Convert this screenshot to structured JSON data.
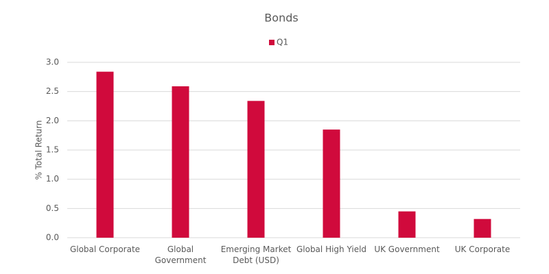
{
  "chart_data": {
    "type": "bar",
    "title": "Bonds",
    "y_label": "% Total Return",
    "categories": [
      "Global Corporate",
      "Global Government",
      "Emerging Market Debt (USD)",
      "Global High Yield",
      "UK Government",
      "UK Corporate"
    ],
    "series": [
      {
        "name": "Q1",
        "color": "#d00a3c",
        "values": [
          2.84,
          2.59,
          2.34,
          1.85,
          0.45,
          0.32
        ]
      }
    ],
    "ylim": [
      0,
      3
    ],
    "yticks": [
      {
        "value": 0,
        "label": "0.0"
      },
      0.5,
      {
        "value": 1,
        "label": "1.0"
      },
      1.5,
      {
        "value": 2,
        "label": "2.0"
      },
      2.5,
      {
        "value": 3,
        "label": "3.0"
      }
    ],
    "grid": true,
    "legend": "top"
  }
}
